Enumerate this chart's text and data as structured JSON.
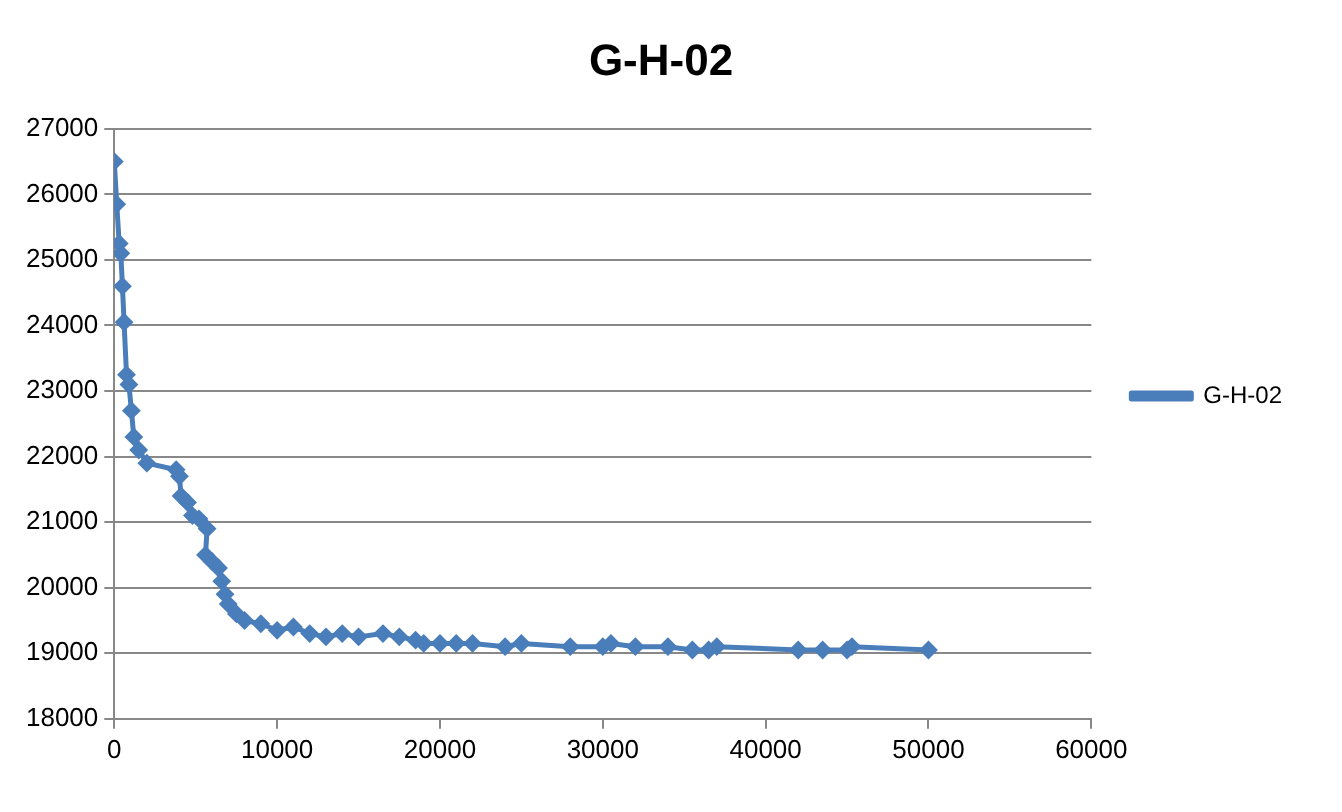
{
  "chart_data": {
    "type": "line",
    "title": "G-H-02",
    "xlim": [
      0,
      60000
    ],
    "xticks": [
      0,
      10000,
      20000,
      30000,
      40000,
      50000,
      60000
    ],
    "ylim": [
      18000,
      27000
    ],
    "yticks": [
      18000,
      19000,
      20000,
      21000,
      22000,
      23000,
      24000,
      25000,
      26000,
      27000
    ],
    "grid": "y",
    "legend": "right",
    "marker": "diamond",
    "line_style": "solid",
    "x": [
      0,
      150,
      300,
      400,
      500,
      600,
      750,
      900,
      1050,
      1200,
      1500,
      2000,
      3800,
      4000,
      4100,
      4500,
      4800,
      5200,
      5700,
      5600,
      6000,
      6400,
      6600,
      6800,
      7000,
      7500,
      8000,
      9000,
      10000,
      11000,
      12000,
      13000,
      14000,
      15000,
      16500,
      17500,
      18500,
      19000,
      20000,
      21000,
      22000,
      24000,
      25000,
      28000,
      30000,
      30500,
      32000,
      34000,
      35500,
      36500,
      37000,
      42000,
      43500,
      45000,
      45300,
      50000
    ],
    "series": [
      {
        "name": "G-H-02",
        "color": "#4a7ebb",
        "values": [
          26500,
          25850,
          25250,
          25100,
          24600,
          24050,
          23250,
          23100,
          22700,
          22300,
          22100,
          21900,
          21800,
          21700,
          21400,
          21300,
          21100,
          21050,
          20900,
          20500,
          20400,
          20300,
          20100,
          19900,
          19750,
          19600,
          19500,
          19450,
          19350,
          19400,
          19300,
          19250,
          19300,
          19250,
          19300,
          19250,
          19200,
          19150,
          19150,
          19150,
          19150,
          19100,
          19150,
          19100,
          19100,
          19150,
          19100,
          19100,
          19050,
          19050,
          19100,
          19050,
          19050,
          19050,
          19100,
          19050
        ]
      }
    ]
  }
}
